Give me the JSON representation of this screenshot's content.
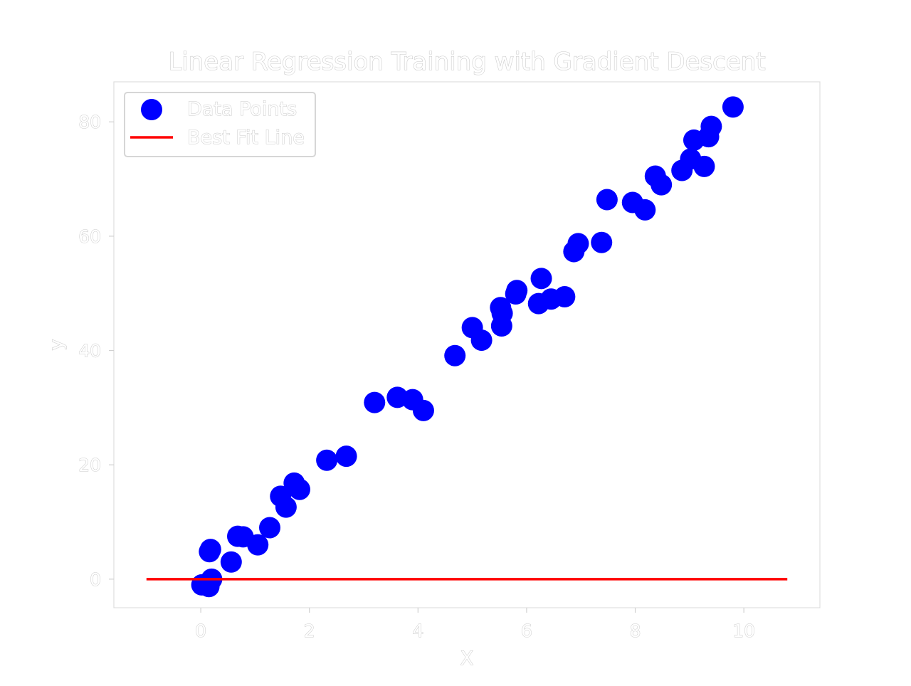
{
  "chart_data": {
    "type": "scatter",
    "title": "Linear Regression Training with Gradient Descent",
    "xlabel": "X",
    "ylabel": "y",
    "xlim": [
      -1.6,
      11.4
    ],
    "ylim": [
      -5,
      87
    ],
    "xticks": [
      0,
      2,
      4,
      6,
      8,
      10
    ],
    "yticks": [
      0,
      20,
      40,
      60,
      80
    ],
    "grid": false,
    "legend_position": "top-left",
    "series": [
      {
        "name": "Data Points",
        "kind": "scatter",
        "color": "#0000ff",
        "points": [
          [
            0.02,
            -1.0
          ],
          [
            0.08,
            -0.9
          ],
          [
            0.15,
            -1.3
          ],
          [
            0.2,
            0.0
          ],
          [
            0.18,
            5.2
          ],
          [
            0.16,
            4.8
          ],
          [
            0.56,
            3.0
          ],
          [
            0.68,
            7.5
          ],
          [
            0.78,
            7.4
          ],
          [
            1.05,
            6.0
          ],
          [
            1.27,
            9.0
          ],
          [
            1.47,
            14.5
          ],
          [
            1.57,
            12.6
          ],
          [
            1.72,
            16.8
          ],
          [
            1.82,
            15.7
          ],
          [
            2.32,
            20.8
          ],
          [
            2.68,
            21.5
          ],
          [
            3.2,
            30.9
          ],
          [
            3.62,
            31.8
          ],
          [
            3.9,
            31.4
          ],
          [
            4.1,
            29.5
          ],
          [
            4.68,
            39.1
          ],
          [
            5.0,
            44.0
          ],
          [
            5.17,
            41.8
          ],
          [
            5.52,
            47.5
          ],
          [
            5.55,
            46.5
          ],
          [
            5.54,
            44.3
          ],
          [
            5.82,
            50.5
          ],
          [
            5.8,
            49.9
          ],
          [
            6.22,
            48.2
          ],
          [
            6.27,
            52.6
          ],
          [
            6.45,
            49.0
          ],
          [
            6.7,
            49.4
          ],
          [
            6.87,
            57.3
          ],
          [
            6.95,
            58.7
          ],
          [
            7.38,
            58.9
          ],
          [
            7.48,
            66.4
          ],
          [
            7.95,
            65.9
          ],
          [
            8.18,
            64.6
          ],
          [
            8.37,
            70.5
          ],
          [
            8.48,
            69.0
          ],
          [
            8.86,
            71.5
          ],
          [
            9.02,
            73.5
          ],
          [
            9.08,
            76.8
          ],
          [
            9.27,
            72.2
          ],
          [
            9.35,
            77.4
          ],
          [
            9.4,
            79.2
          ],
          [
            9.8,
            82.6
          ]
        ]
      },
      {
        "name": "Best Fit Line",
        "kind": "line",
        "color": "#ff0000",
        "x": [
          -1.0,
          10.8
        ],
        "y": [
          0,
          0
        ]
      }
    ]
  }
}
